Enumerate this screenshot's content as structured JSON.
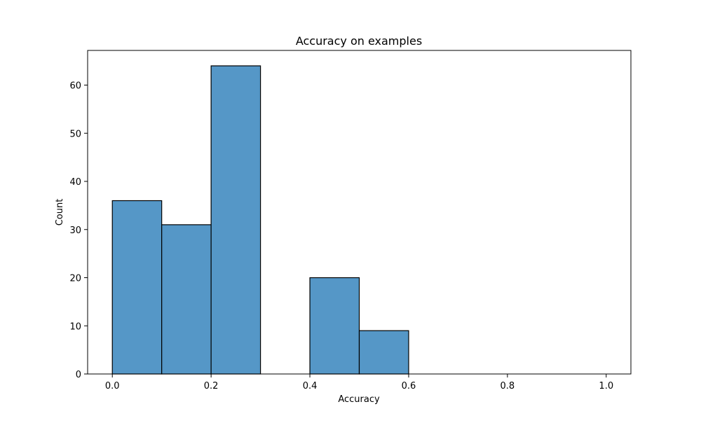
{
  "chart_data": {
    "type": "histogram",
    "title": "Accuracy on examples",
    "x_label": "Accuracy",
    "y_label": "Count",
    "bins": [
      0,
      0.1,
      0.2,
      0.3,
      0.4,
      0.5,
      0.6,
      0.7,
      0.8,
      0.9,
      1.0
    ],
    "values": [
      36,
      31,
      64,
      0,
      20,
      9,
      0,
      0,
      0,
      0
    ],
    "color": "#5597c7",
    "edgecolor": "#000000",
    "xlim": [
      -0.05,
      1.05
    ],
    "xticks": [
      {
        "value": 0,
        "label": "0.0"
      },
      0.2,
      0.4,
      0.6,
      0.8,
      {
        "value": 1,
        "label": "1.0"
      }
    ],
    "ylim": [
      0,
      67.2
    ],
    "yticks": [
      0,
      10,
      20,
      30,
      40,
      50,
      60
    ]
  }
}
